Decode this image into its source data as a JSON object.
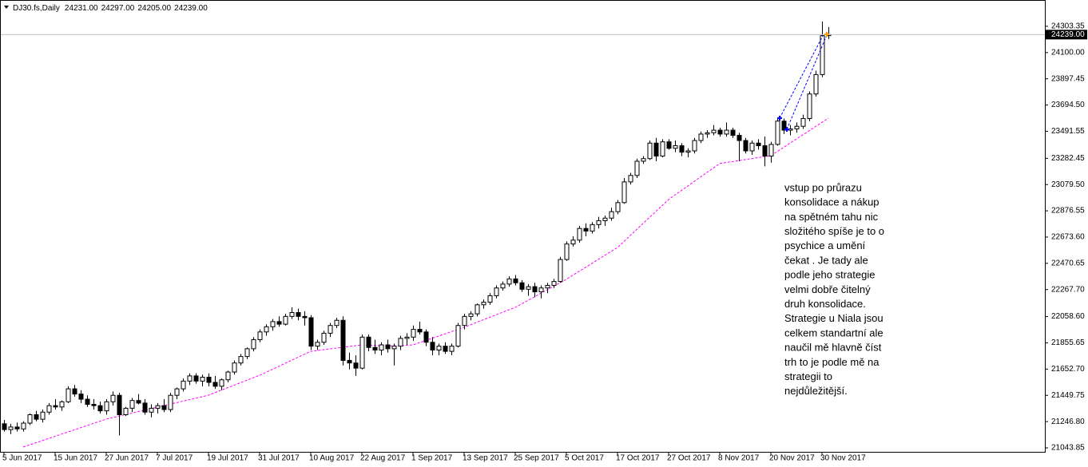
{
  "chart_data": {
    "type": "candlestick",
    "title": "DJ30.fs,Daily",
    "header_values": [
      {
        "value": 24231,
        "label": "24231.00"
      },
      {
        "value": 24297,
        "label": "24297.00"
      },
      {
        "value": 24205,
        "label": "24205.00"
      },
      {
        "value": 24239,
        "label": "24239.00"
      }
    ],
    "categories": [
      "5 Jun 2017",
      null,
      null,
      null,
      null,
      null,
      null,
      null,
      "15 Jun 2017",
      null,
      null,
      null,
      null,
      null,
      null,
      null,
      "27 Jun 2017",
      null,
      null,
      null,
      null,
      null,
      null,
      null,
      "7 Jul 2017",
      null,
      null,
      null,
      null,
      null,
      null,
      null,
      "19 Jul 2017",
      null,
      null,
      null,
      null,
      null,
      null,
      null,
      "31 Jul 2017",
      null,
      null,
      null,
      null,
      null,
      null,
      null,
      "10 Aug 2017",
      null,
      null,
      null,
      null,
      null,
      null,
      null,
      "22 Aug 2017",
      null,
      null,
      null,
      null,
      null,
      null,
      null,
      "1 Sep 2017",
      null,
      null,
      null,
      null,
      null,
      null,
      null,
      "13 Sep 2017",
      null,
      null,
      null,
      null,
      null,
      null,
      null,
      "25 Sep 2017",
      null,
      null,
      null,
      null,
      null,
      null,
      null,
      "5 Oct 2017",
      null,
      null,
      null,
      null,
      null,
      null,
      null,
      "17 Oct 2017",
      null,
      null,
      null,
      null,
      null,
      null,
      null,
      "27 Oct 2017",
      null,
      null,
      null,
      null,
      null,
      null,
      null,
      "8 Nov 2017",
      null,
      null,
      null,
      null,
      null,
      null,
      null,
      "20 Nov 2017",
      null,
      null,
      null,
      null,
      null,
      null,
      null,
      "30 Nov 2017",
      null
    ],
    "open": [
      21230,
      21185,
      21205,
      21190,
      21235,
      21300,
      21265,
      21320,
      21370,
      21360,
      21400,
      21500,
      21460,
      21420,
      21380,
      21370,
      21330,
      21400,
      21450,
      21300,
      21350,
      21410,
      21390,
      21320,
      21350,
      21370,
      21340,
      21450,
      21500,
      21560,
      21600,
      21560,
      21590,
      21550,
      21520,
      21570,
      21630,
      21700,
      21750,
      21810,
      21880,
      21940,
      21980,
      22020,
      22000,
      22060,
      22090,
      22060,
      22050,
      21830,
      21860,
      21930,
      21990,
      22030,
      21720,
      21700,
      21660,
      21900,
      21820,
      21800,
      21840,
      21810,
      21830,
      21890,
      21900,
      21960,
      21940,
      21860,
      21800,
      21830,
      21790,
      21830,
      21990,
      22060,
      22080,
      22150,
      22170,
      22220,
      22280,
      22310,
      22350,
      22320,
      22270,
      22290,
      22250,
      22280,
      22300,
      22330,
      22500,
      22620,
      22650,
      22740,
      22720,
      22770,
      22800,
      22820,
      22870,
      22940,
      23100,
      23150,
      23260,
      23280,
      23400,
      23300,
      23410,
      23360,
      23380,
      23330,
      23340,
      23420,
      23470,
      23480,
      23500,
      23470,
      23500,
      23460,
      23420,
      23340,
      23400,
      23380,
      23300,
      23390,
      23570,
      23500,
      23510,
      23530,
      23590,
      23780,
      23930,
      24231
    ],
    "high": [
      21260,
      21230,
      21240,
      21250,
      21310,
      21330,
      21340,
      21390,
      21420,
      21410,
      21520,
      21530,
      21490,
      21450,
      21420,
      21400,
      21420,
      21480,
      21470,
      21360,
      21430,
      21460,
      21420,
      21380,
      21390,
      21420,
      21470,
      21510,
      21580,
      21620,
      21620,
      21610,
      21620,
      21600,
      21580,
      21640,
      21720,
      21770,
      21820,
      21900,
      21960,
      22000,
      22040,
      22060,
      22080,
      22130,
      22120,
      22100,
      22070,
      21880,
      21950,
      22010,
      22050,
      22060,
      21780,
      21760,
      21920,
      21920,
      21880,
      21860,
      21880,
      21850,
      21910,
      21930,
      21990,
      22020,
      21960,
      21900,
      21850,
      21860,
      21850,
      22010,
      22080,
      22100,
      22160,
      22190,
      22240,
      22300,
      22330,
      22370,
      22380,
      22340,
      22310,
      22320,
      22300,
      22320,
      22350,
      22520,
      22640,
      22680,
      22760,
      22780,
      22790,
      22830,
      22840,
      22900,
      22960,
      23130,
      23170,
      23280,
      23300,
      23420,
      23440,
      23430,
      23430,
      23420,
      23400,
      23360,
      23440,
      23490,
      23500,
      23540,
      23520,
      23560,
      23520,
      23480,
      23440,
      23420,
      23430,
      23450,
      23410,
      23600,
      23590,
      23540,
      23560,
      23620,
      23800,
      23960,
      24340,
      24297
    ],
    "low": [
      21170,
      21150,
      21170,
      21170,
      21220,
      21250,
      21240,
      21300,
      21340,
      21330,
      21390,
      21440,
      21390,
      21360,
      21340,
      21310,
      21300,
      21370,
      21140,
      21290,
      21320,
      21380,
      21300,
      21280,
      21310,
      21320,
      21320,
      21420,
      21480,
      21530,
      21540,
      21520,
      21520,
      21500,
      21490,
      21550,
      21610,
      21680,
      21730,
      21790,
      21860,
      21910,
      21950,
      21980,
      21990,
      22040,
      22030,
      21990,
      21800,
      21800,
      21840,
      21900,
      21970,
      21680,
      21650,
      21600,
      21650,
      21790,
      21770,
      21760,
      21780,
      21680,
      21800,
      21840,
      21870,
      21920,
      21830,
      21760,
      21760,
      21770,
      21760,
      21820,
      21960,
      22030,
      22060,
      22120,
      22150,
      22200,
      22260,
      22290,
      22300,
      22250,
      22220,
      22210,
      22200,
      22240,
      22280,
      22320,
      22490,
      22600,
      22630,
      22680,
      22700,
      22740,
      22760,
      22800,
      22850,
      22930,
      23080,
      23130,
      23240,
      23270,
      23260,
      23290,
      23350,
      23330,
      23300,
      23290,
      23320,
      23400,
      23440,
      23460,
      23450,
      23450,
      23440,
      23260,
      23320,
      23310,
      23350,
      23220,
      23250,
      23380,
      23470,
      23460,
      23480,
      23510,
      23570,
      23760,
      23910,
      24205
    ],
    "close": [
      21185,
      21205,
      21190,
      21235,
      21300,
      21265,
      21320,
      21370,
      21360,
      21400,
      21500,
      21460,
      21420,
      21380,
      21370,
      21330,
      21400,
      21450,
      21300,
      21350,
      21410,
      21390,
      21320,
      21350,
      21370,
      21340,
      21450,
      21500,
      21560,
      21600,
      21560,
      21590,
      21550,
      21520,
      21570,
      21630,
      21700,
      21750,
      21810,
      21880,
      21940,
      21980,
      22020,
      22000,
      22060,
      22090,
      22060,
      22050,
      21830,
      21860,
      21930,
      21990,
      22030,
      21720,
      21700,
      21660,
      21900,
      21820,
      21800,
      21840,
      21810,
      21830,
      21890,
      21900,
      21960,
      21940,
      21860,
      21800,
      21830,
      21790,
      21830,
      21990,
      22060,
      22080,
      22150,
      22170,
      22220,
      22280,
      22310,
      22350,
      22320,
      22270,
      22290,
      22250,
      22280,
      22300,
      22330,
      22500,
      22620,
      22650,
      22740,
      22720,
      22770,
      22800,
      22820,
      22870,
      22940,
      23100,
      23150,
      23260,
      23280,
      23400,
      23300,
      23410,
      23360,
      23380,
      23330,
      23340,
      23420,
      23470,
      23480,
      23500,
      23470,
      23500,
      23460,
      23420,
      23340,
      23400,
      23380,
      23300,
      23390,
      23570,
      23500,
      23510,
      23530,
      23590,
      23780,
      23930,
      24231,
      24239
    ],
    "up_color": "#ffffff",
    "down_color": "#000000",
    "ma": {
      "color": "#ff00ff",
      "values": [
        null,
        null,
        null,
        21050,
        21067,
        21083,
        21100,
        21116,
        21133,
        21150,
        21166,
        21183,
        21200,
        21216,
        21233,
        21249,
        21266,
        21278,
        21289,
        21301,
        21312,
        21324,
        21335,
        21347,
        21358,
        21370,
        21382,
        21393,
        21405,
        21416,
        21428,
        21439,
        21451,
        21470,
        21490,
        21509,
        21528,
        21547,
        21567,
        21586,
        21605,
        21628,
        21651,
        21674,
        21698,
        21721,
        21744,
        21767,
        21790,
        21796,
        21803,
        21809,
        21815,
        21821,
        21828,
        21834,
        21840,
        21838,
        21836,
        21834,
        21832,
        21832,
        21834,
        21837,
        21840,
        21857,
        21874,
        21891,
        21908,
        21925,
        21942,
        21959,
        21976,
        21995,
        22015,
        22034,
        22053,
        22072,
        22092,
        22111,
        22130,
        22157,
        22184,
        22211,
        22239,
        22266,
        22293,
        22320,
        22347,
        22378,
        22409,
        22439,
        22470,
        22501,
        22532,
        22562,
        22593,
        22639,
        22686,
        22732,
        22779,
        22825,
        22871,
        22918,
        22964,
        22999,
        23034,
        23068,
        23103,
        23138,
        23173,
        23207,
        23242,
        23250,
        23257,
        23265,
        23273,
        23280,
        23288,
        23295,
        23303,
        23335,
        23367,
        23400,
        23432,
        23464,
        23496,
        23529,
        23561,
        23593
      ]
    },
    "ylim": [
      21013,
      24488
    ],
    "yticks": [
      {
        "value": 24303.35,
        "label": "24303.35"
      },
      {
        "value": 24100,
        "label": "24100.00"
      },
      {
        "value": 23897.45,
        "label": "23897.45"
      },
      {
        "value": 23694.5,
        "label": "23694.50"
      },
      {
        "value": 23491.55,
        "label": "23491.55"
      },
      {
        "value": 23282.45,
        "label": "23282.45"
      },
      {
        "value": 23079.5,
        "label": "23079.50"
      },
      {
        "value": 22876.55,
        "label": "22876.55"
      },
      {
        "value": 22673.6,
        "label": "22673.60"
      },
      {
        "value": 22470.65,
        "label": "22470.65"
      },
      {
        "value": 22267.7,
        "label": "22267.70"
      },
      {
        "value": 22058.6,
        "label": "22058.60"
      },
      {
        "value": 21855.65,
        "label": "21855.65"
      },
      {
        "value": 21652.7,
        "label": "21652.70"
      },
      {
        "value": 21449.75,
        "label": "21449.75"
      },
      {
        "value": 21246.8,
        "label": "21246.80"
      },
      {
        "value": 21043.85,
        "label": "21043.85"
      }
    ],
    "last_price": {
      "value": 24239,
      "label": "24239.00"
    },
    "annotation": [
      "vstup po průrazu",
      "konsolidace a nákup",
      "na spětném tahu nic",
      "složitého spíše je to o",
      "psychice a umění",
      "čekat . Je tady ale",
      "podle jeho strategie",
      "velmi dobře čitelný",
      "druh konsolidace.",
      "Strategie u Niala jsou",
      "celkem standartní ale",
      "naučil mě hlavně číst",
      "trh to je podle mě na",
      "strategii to",
      "nejdůležitější."
    ]
  }
}
